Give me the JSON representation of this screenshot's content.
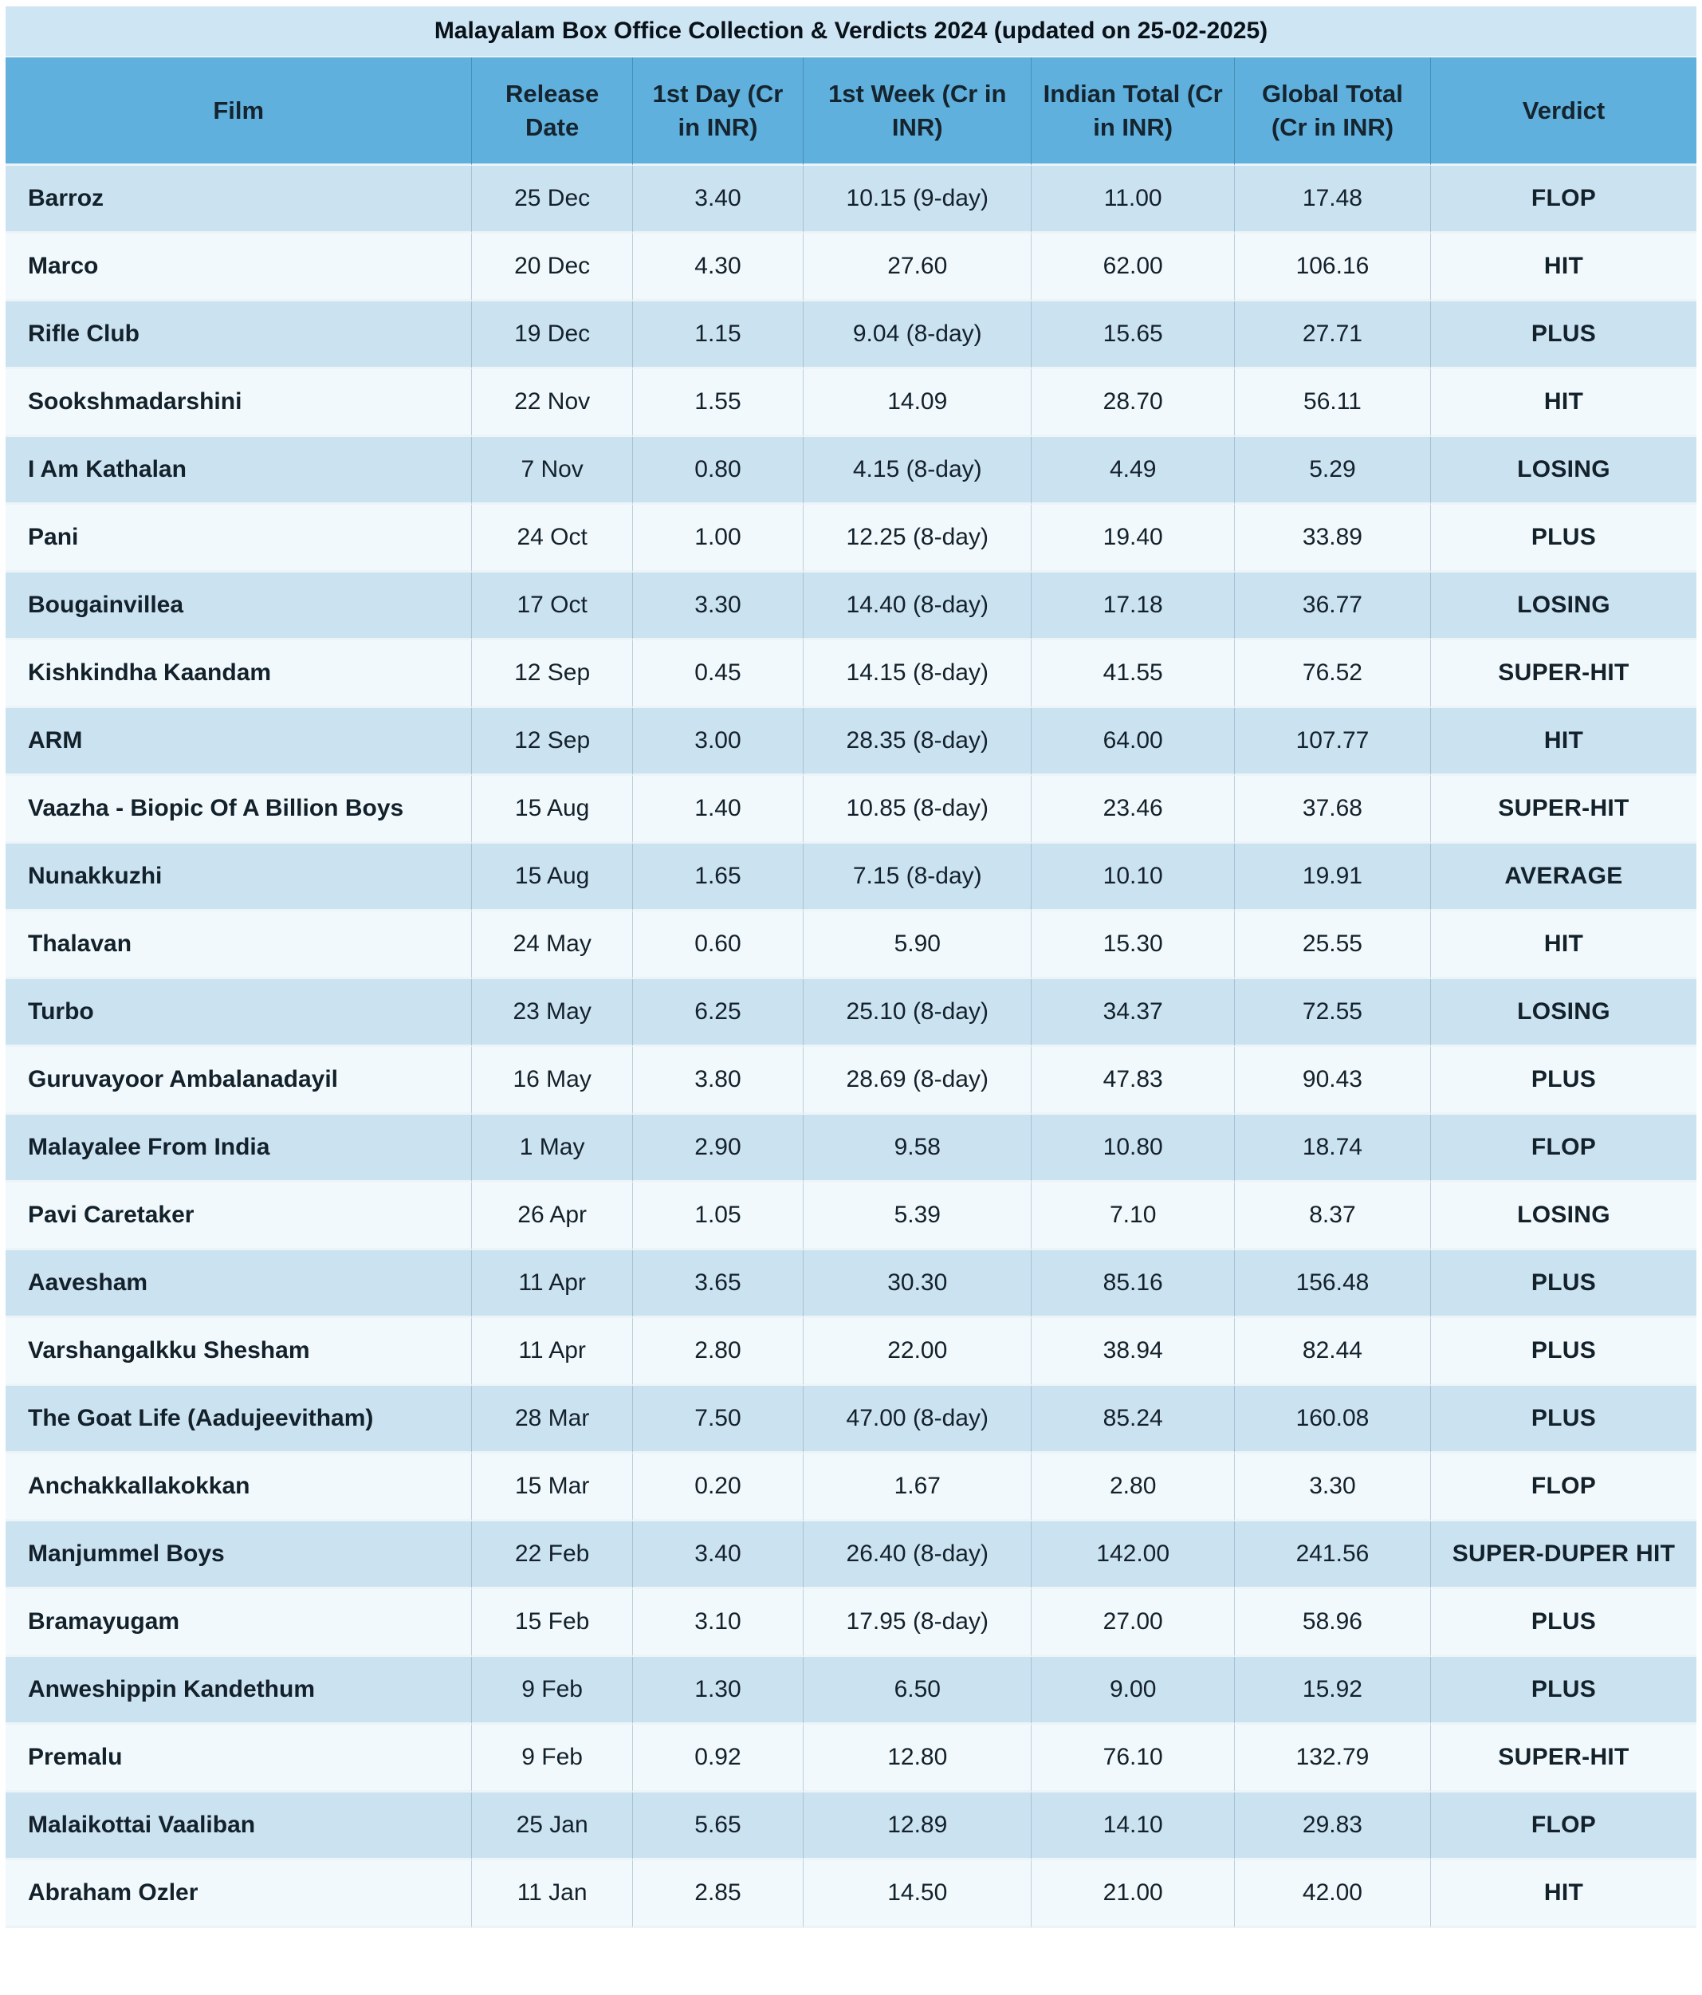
{
  "title": "Malayalam Box Office Collection & Verdicts 2024 (updated on 25-02-2025)",
  "colors": {
    "title_bar_bg": "#cee5f4",
    "header_bg": "#5fb0dd",
    "row_alt_bg": "#cbe2f1",
    "row_bg": "#f2f9fc",
    "text": "#13212b"
  },
  "chart_data": {
    "type": "table",
    "title": "Malayalam Box Office Collection & Verdicts 2024 (updated on 25-02-2025)",
    "columns": [
      "Film",
      "Release Date",
      "1st Day (Cr in INR)",
      "1st Week (Cr in INR)",
      "Indian Total (Cr in INR)",
      "Global Total (Cr in INR)",
      "Verdict"
    ],
    "rows": [
      {
        "film": "Barroz",
        "release_date": "25 Dec",
        "first_day": "3.40",
        "first_week": "10.15 (9-day)",
        "indian_total": "11.00",
        "global_total": "17.48",
        "verdict": "FLOP"
      },
      {
        "film": "Marco",
        "release_date": "20 Dec",
        "first_day": "4.30",
        "first_week": "27.60",
        "indian_total": "62.00",
        "global_total": "106.16",
        "verdict": "HIT"
      },
      {
        "film": "Rifle Club",
        "release_date": "19 Dec",
        "first_day": "1.15",
        "first_week": "9.04 (8-day)",
        "indian_total": "15.65",
        "global_total": "27.71",
        "verdict": "PLUS"
      },
      {
        "film": "Sookshmadarshini",
        "release_date": "22 Nov",
        "first_day": "1.55",
        "first_week": "14.09",
        "indian_total": "28.70",
        "global_total": "56.11",
        "verdict": "HIT"
      },
      {
        "film": "I Am Kathalan",
        "release_date": "7 Nov",
        "first_day": "0.80",
        "first_week": "4.15 (8-day)",
        "indian_total": "4.49",
        "global_total": "5.29",
        "verdict": "LOSING"
      },
      {
        "film": "Pani",
        "release_date": "24 Oct",
        "first_day": "1.00",
        "first_week": "12.25 (8-day)",
        "indian_total": "19.40",
        "global_total": "33.89",
        "verdict": "PLUS"
      },
      {
        "film": "Bougainvillea",
        "release_date": "17 Oct",
        "first_day": "3.30",
        "first_week": "14.40 (8-day)",
        "indian_total": "17.18",
        "global_total": "36.77",
        "verdict": "LOSING"
      },
      {
        "film": "Kishkindha Kaandam",
        "release_date": "12 Sep",
        "first_day": "0.45",
        "first_week": "14.15 (8-day)",
        "indian_total": "41.55",
        "global_total": "76.52",
        "verdict": "SUPER-HIT"
      },
      {
        "film": "ARM",
        "release_date": "12 Sep",
        "first_day": "3.00",
        "first_week": "28.35 (8-day)",
        "indian_total": "64.00",
        "global_total": "107.77",
        "verdict": "HIT"
      },
      {
        "film": "Vaazha - Biopic Of A Billion Boys",
        "release_date": "15 Aug",
        "first_day": "1.40",
        "first_week": "10.85 (8-day)",
        "indian_total": "23.46",
        "global_total": "37.68",
        "verdict": "SUPER-HIT"
      },
      {
        "film": "Nunakkuzhi",
        "release_date": "15 Aug",
        "first_day": "1.65",
        "first_week": "7.15 (8-day)",
        "indian_total": "10.10",
        "global_total": "19.91",
        "verdict": "AVERAGE"
      },
      {
        "film": "Thalavan",
        "release_date": "24 May",
        "first_day": "0.60",
        "first_week": "5.90",
        "indian_total": "15.30",
        "global_total": "25.55",
        "verdict": "HIT"
      },
      {
        "film": "Turbo",
        "release_date": "23 May",
        "first_day": "6.25",
        "first_week": "25.10 (8-day)",
        "indian_total": "34.37",
        "global_total": "72.55",
        "verdict": "LOSING"
      },
      {
        "film": "Guruvayoor Ambalanadayil",
        "release_date": "16 May",
        "first_day": "3.80",
        "first_week": "28.69 (8-day)",
        "indian_total": "47.83",
        "global_total": "90.43",
        "verdict": "PLUS"
      },
      {
        "film": "Malayalee From India",
        "release_date": "1 May",
        "first_day": "2.90",
        "first_week": "9.58",
        "indian_total": "10.80",
        "global_total": "18.74",
        "verdict": "FLOP"
      },
      {
        "film": "Pavi Caretaker",
        "release_date": "26 Apr",
        "first_day": "1.05",
        "first_week": "5.39",
        "indian_total": "7.10",
        "global_total": "8.37",
        "verdict": "LOSING"
      },
      {
        "film": "Aavesham",
        "release_date": "11 Apr",
        "first_day": "3.65",
        "first_week": "30.30",
        "indian_total": "85.16",
        "global_total": "156.48",
        "verdict": "PLUS"
      },
      {
        "film": "Varshangalkku Shesham",
        "release_date": "11 Apr",
        "first_day": "2.80",
        "first_week": "22.00",
        "indian_total": "38.94",
        "global_total": "82.44",
        "verdict": "PLUS"
      },
      {
        "film": "The Goat Life (Aadujeevitham)",
        "release_date": "28 Mar",
        "first_day": "7.50",
        "first_week": "47.00 (8-day)",
        "indian_total": "85.24",
        "global_total": "160.08",
        "verdict": "PLUS"
      },
      {
        "film": "Anchakkallakokkan",
        "release_date": "15 Mar",
        "first_day": "0.20",
        "first_week": "1.67",
        "indian_total": "2.80",
        "global_total": "3.30",
        "verdict": "FLOP"
      },
      {
        "film": "Manjummel Boys",
        "release_date": "22 Feb",
        "first_day": "3.40",
        "first_week": "26.40 (8-day)",
        "indian_total": "142.00",
        "global_total": "241.56",
        "verdict": "SUPER-DUPER HIT"
      },
      {
        "film": "Bramayugam",
        "release_date": "15 Feb",
        "first_day": "3.10",
        "first_week": "17.95 (8-day)",
        "indian_total": "27.00",
        "global_total": "58.96",
        "verdict": "PLUS"
      },
      {
        "film": "Anweshippin Kandethum",
        "release_date": "9 Feb",
        "first_day": "1.30",
        "first_week": "6.50",
        "indian_total": "9.00",
        "global_total": "15.92",
        "verdict": "PLUS"
      },
      {
        "film": "Premalu",
        "release_date": "9 Feb",
        "first_day": "0.92",
        "first_week": "12.80",
        "indian_total": "76.10",
        "global_total": "132.79",
        "verdict": "SUPER-HIT"
      },
      {
        "film": "Malaikottai Vaaliban",
        "release_date": "25 Jan",
        "first_day": "5.65",
        "first_week": "12.89",
        "indian_total": "14.10",
        "global_total": "29.83",
        "verdict": "FLOP"
      },
      {
        "film": "Abraham Ozler",
        "release_date": "11 Jan",
        "first_day": "2.85",
        "first_week": "14.50",
        "indian_total": "21.00",
        "global_total": "42.00",
        "verdict": "HIT"
      }
    ]
  }
}
